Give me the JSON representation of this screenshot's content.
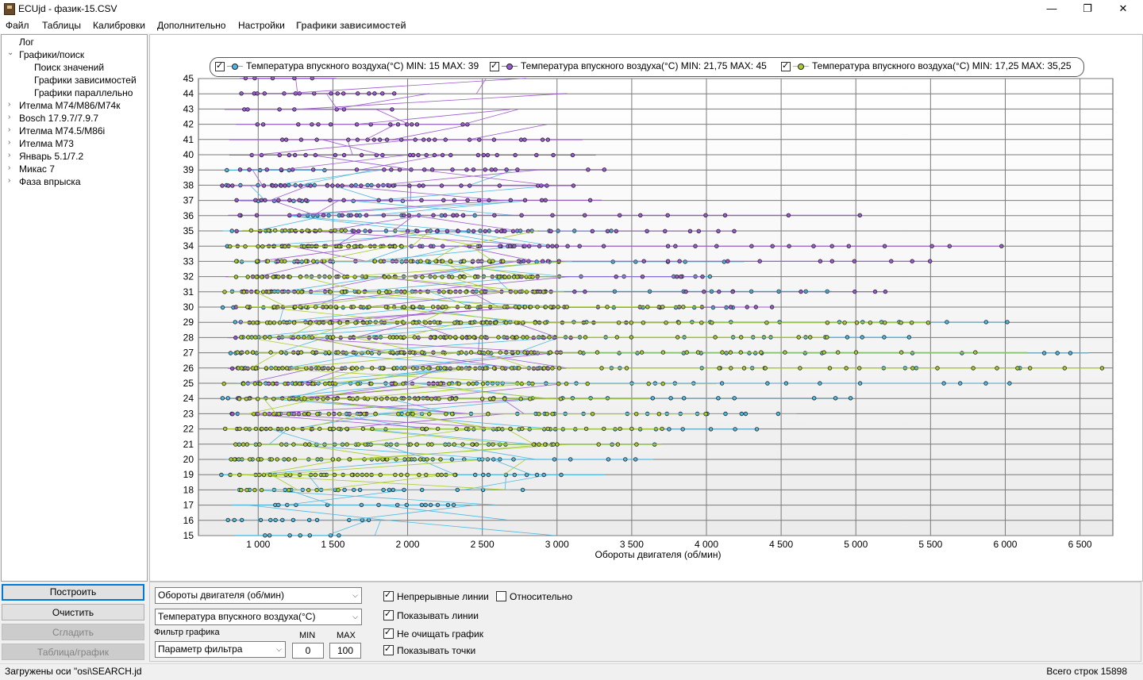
{
  "window": {
    "title": "ECUjd - фазик-15.CSV",
    "minimize_glyph": "—",
    "maximize_glyph": "❐",
    "close_glyph": "✕"
  },
  "menu": [
    "Файл",
    "Таблицы",
    "Калибровки",
    "Дополнительно",
    "Настройки",
    "Графики зависимостей"
  ],
  "tree": {
    "items": [
      {
        "label": "Лог",
        "level": 0,
        "arrow": ""
      },
      {
        "label": "Графики/поиск",
        "level": 0,
        "arrow": "⌄"
      },
      {
        "label": "Поиск значений",
        "level": 1,
        "arrow": ""
      },
      {
        "label": "Графики зависимостей",
        "level": 1,
        "arrow": ""
      },
      {
        "label": "Графики параллельно",
        "level": 1,
        "arrow": ""
      },
      {
        "label": "Ителма M74/M86/M74к",
        "level": 0,
        "arrow": "›"
      },
      {
        "label": "Bosch 17.9.7/7.9.7",
        "level": 0,
        "arrow": "›"
      },
      {
        "label": "Ителма M74.5/M86i",
        "level": 0,
        "arrow": "›"
      },
      {
        "label": "Ителма M73",
        "level": 0,
        "arrow": "›"
      },
      {
        "label": "Январь 5.1/7.2",
        "level": 0,
        "arrow": "›"
      },
      {
        "label": "Микас 7",
        "level": 0,
        "arrow": "›"
      },
      {
        "label": "Фаза впрыска",
        "level": 0,
        "arrow": "›"
      }
    ]
  },
  "left_buttons": {
    "build": "Построить",
    "clear": "Очистить",
    "smooth": "Сгладить",
    "table_graph": "Таблица/график"
  },
  "chart_data": {
    "type": "scatter",
    "xlabel": "Обороты  двигателя (об/мин)",
    "ylabel": "",
    "x_ticks": [
      "1 000",
      "1 500",
      "2 000",
      "2 500",
      "3 000",
      "3 500",
      "4 000",
      "4 500",
      "5 000",
      "5 500",
      "6 000",
      "6 500"
    ],
    "x_tick_values": [
      1000,
      1500,
      2000,
      2500,
      3000,
      3500,
      4000,
      4500,
      5000,
      5500,
      6000,
      6500
    ],
    "y_ticks": [
      15,
      16,
      17,
      18,
      19,
      20,
      21,
      22,
      23,
      24,
      25,
      26,
      27,
      28,
      29,
      30,
      31,
      32,
      33,
      34,
      35,
      36,
      37,
      38,
      39,
      40,
      41,
      42,
      43,
      44,
      45
    ],
    "xlim": [
      600,
      6720
    ],
    "ylim": [
      15,
      45
    ],
    "grid": true,
    "legend_position": "top",
    "series": [
      {
        "name": "Температура впускного воздуха(°C) MIN: 15 MAX: 39",
        "color": "#4fb8e0",
        "y_min": 15,
        "y_max": 39,
        "x_max": 6720
      },
      {
        "name": "Температура впускного воздуха(°C) MIN: 21,75 MAX: 45",
        "color": "#9b59d0",
        "y_min": 21.75,
        "y_max": 45,
        "x_max": 6000
      },
      {
        "name": "Температура впускного воздуха(°C) MIN: 17,25 MAX: 35,25",
        "color": "#a8cc2e",
        "y_min": 17.25,
        "y_max": 35.25,
        "x_max": 6720
      }
    ]
  },
  "controls": {
    "x_param": "Обороты  двигателя (об/мин)",
    "y_param": "Температура впускного воздуха(°C)",
    "filter_label": "Фильтр графика",
    "filter_param": "Параметр фильтра",
    "min_label": "MIN",
    "max_label": "MAX",
    "min_value": "0",
    "max_value": "100",
    "checkboxes": {
      "continuous_lines": {
        "label": "Непрерывные линии",
        "checked": true
      },
      "relative": {
        "label": "Относительно",
        "checked": false
      },
      "show_lines": {
        "label": "Показывать линии",
        "checked": true
      },
      "no_clear": {
        "label": "Не очищать график",
        "checked": true
      },
      "show_points": {
        "label": "Показывать точки",
        "checked": true
      }
    }
  },
  "status": {
    "left": "Загружены оси \"osi\\SEARCH.jd",
    "right": "Всего строк 15898"
  }
}
